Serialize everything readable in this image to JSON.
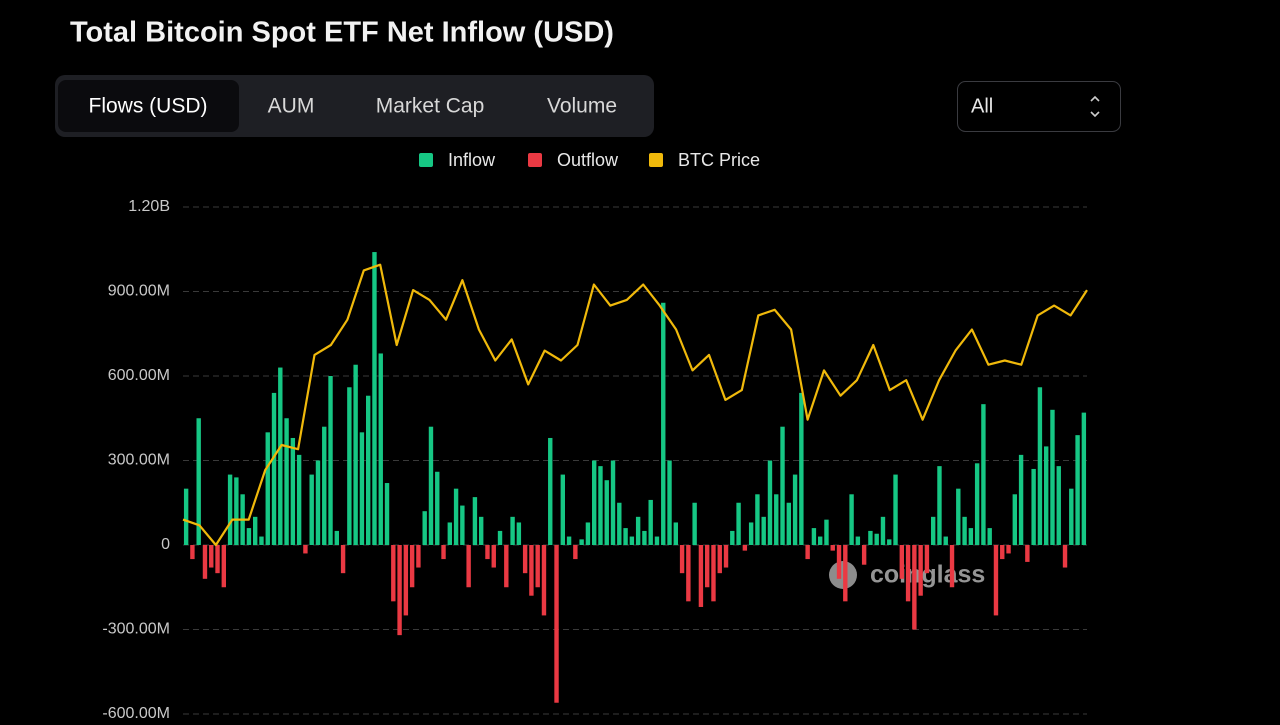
{
  "chart_data": {
    "type": "bar",
    "title": "Total Bitcoin Spot ETF Net Inflow (USD)",
    "tabs": [
      "Flows (USD)",
      "AUM",
      "Market Cap",
      "Volume"
    ],
    "range_select": "All",
    "legend": [
      {
        "name": "Inflow",
        "color": "#16c784"
      },
      {
        "name": "Outflow",
        "color": "#ea3943"
      },
      {
        "name": "BTC Price",
        "color": "#f0b90b"
      }
    ],
    "ylim": [
      -600,
      1200
    ],
    "yticks": [
      {
        "value": -600,
        "label": "-600.00M"
      },
      {
        "value": -300,
        "label": "-300.00M"
      },
      0,
      {
        "value": 300,
        "label": "300.00M"
      },
      {
        "value": 600,
        "label": "600.00M"
      },
      {
        "value": 900,
        "label": "900.00M"
      },
      {
        "value": 1200,
        "label": "1.20B"
      }
    ],
    "grid": true,
    "values": [
      200,
      -50,
      450,
      -120,
      -80,
      -100,
      -150,
      250,
      240,
      180,
      60,
      100,
      30,
      400,
      540,
      630,
      450,
      380,
      320,
      -30,
      250,
      300,
      420,
      600,
      50,
      -100,
      560,
      640,
      400,
      530,
      1040,
      680,
      220,
      -200,
      -320,
      -250,
      -150,
      -80,
      120,
      420,
      260,
      -50,
      80,
      200,
      140,
      -150,
      170,
      100,
      -50,
      -80,
      50,
      -150,
      100,
      80,
      -100,
      -180,
      -150,
      -250,
      380,
      -560,
      250,
      30,
      -50,
      20,
      80,
      300,
      280,
      230,
      300,
      150,
      60,
      30,
      100,
      50,
      160,
      30,
      860,
      300,
      80,
      -100,
      -200,
      150,
      -220,
      -150,
      -200,
      -100,
      -80,
      50,
      150,
      -20,
      80,
      180,
      100,
      300,
      180,
      420,
      150,
      250,
      540,
      -50,
      60,
      30,
      90,
      -20,
      -120,
      -200,
      180,
      30,
      -70,
      50,
      40,
      100,
      20,
      250,
      -120,
      -200,
      -300,
      -180,
      -100,
      100,
      280,
      30,
      -150,
      200,
      100,
      60,
      290,
      500,
      60,
      -250,
      -50,
      -30,
      180,
      320,
      -60,
      270,
      560,
      350,
      480,
      280,
      -80,
      200,
      390,
      470
    ],
    "price_values": [
      90,
      70,
      0,
      90,
      90,
      266,
      355,
      340,
      675,
      710,
      800,
      975,
      995,
      710,
      905,
      870,
      800,
      940,
      765,
      655,
      730,
      570,
      690,
      655,
      710,
      925,
      850,
      870,
      925,
      850,
      765,
      620,
      675,
      515,
      550,
      815,
      835,
      765,
      445,
      620,
      530,
      585,
      710,
      550,
      585,
      445,
      585,
      690,
      765,
      640,
      655,
      640,
      815,
      850,
      815,
      905
    ],
    "watermark": "coinglass"
  }
}
